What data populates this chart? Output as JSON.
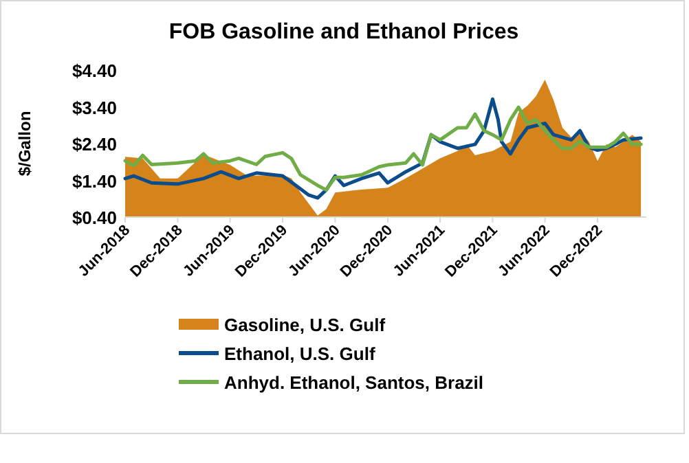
{
  "chart_data": {
    "type": "line",
    "title": "FOB Gasoline and Ethanol Prices",
    "ylabel": "$/Gallon",
    "xlim": [
      "2018-06",
      "2023-05-20"
    ],
    "ylim": [
      0.4,
      4.4
    ],
    "yticks": [
      {
        "value": 0.4,
        "label": "$0.40"
      },
      {
        "value": 1.4,
        "label": "$1.40"
      },
      {
        "value": 2.4,
        "label": "$2.40"
      },
      {
        "value": 3.4,
        "label": "$3.40"
      },
      {
        "value": 4.4,
        "label": "$4.40"
      }
    ],
    "xticks": [
      {
        "value": "2018-06",
        "label": "Jun-2018"
      },
      {
        "value": "2018-12",
        "label": "Dec-2018"
      },
      {
        "value": "2019-06",
        "label": "Jun-2019"
      },
      {
        "value": "2019-12",
        "label": "Dec-2019"
      },
      {
        "value": "2020-06",
        "label": "Jun-2020"
      },
      {
        "value": "2020-12",
        "label": "Dec-2020"
      },
      {
        "value": "2021-06",
        "label": "Jun-2021"
      },
      {
        "value": "2021-12",
        "label": "Dec-2021"
      },
      {
        "value": "2022-06",
        "label": "Jun-2022"
      },
      {
        "value": "2022-12",
        "label": "Dec-2022"
      }
    ],
    "grid": false,
    "legend": "bottom",
    "line_style": "solid",
    "marker": "none",
    "series": [
      {
        "name": "Gasoline, U.S. Gulf",
        "type": "area",
        "color": "#d4841a",
        "x": [
          "2018-06",
          "2018-08",
          "2018-10",
          "2018-12",
          "2019-02",
          "2019-03",
          "2019-06",
          "2019-08",
          "2019-12",
          "2020-01",
          "2020-02",
          "2020-04",
          "2020-05",
          "2020-06",
          "2020-09",
          "2020-12",
          "2021-02",
          "2021-06",
          "2021-08",
          "2021-09",
          "2021-10",
          "2021-12",
          "2022-02",
          "2022-03",
          "2022-04",
          "2022-05",
          "2022-06",
          "2022-07",
          "2022-08",
          "2022-09",
          "2022-10",
          "2022-11",
          "2022-12",
          "2023-01",
          "2023-02",
          "2023-03",
          "2023-04",
          "2023-05"
        ],
        "values": [
          2.04,
          2.0,
          1.45,
          1.45,
          1.9,
          2.1,
          1.82,
          1.52,
          1.55,
          1.45,
          1.07,
          0.44,
          0.62,
          1.07,
          1.15,
          1.2,
          1.45,
          2.0,
          2.2,
          2.38,
          2.08,
          2.2,
          2.45,
          3.24,
          3.43,
          3.69,
          4.14,
          3.58,
          2.83,
          2.57,
          2.75,
          2.45,
          1.93,
          2.38,
          2.3,
          2.45,
          2.64,
          2.45
        ]
      },
      {
        "name": "Ethanol, U.S. Gulf",
        "color": "#0b4c8c",
        "x": [
          "2018-06",
          "2018-07",
          "2018-09",
          "2018-12",
          "2019-03",
          "2019-05",
          "2019-07",
          "2019-09",
          "2019-12",
          "2020-01",
          "2020-03",
          "2020-04",
          "2020-05",
          "2020-06",
          "2020-07",
          "2020-09",
          "2020-11",
          "2020-12",
          "2021-02",
          "2021-04",
          "2021-05",
          "2021-06",
          "2021-08",
          "2021-10",
          "2021-11",
          "2021-12-01",
          "2021-12-20",
          "2022-01",
          "2022-02",
          "2022-03",
          "2022-04",
          "2022-05",
          "2022-06",
          "2022-07",
          "2022-08",
          "2022-09",
          "2022-10",
          "2022-11",
          "2022-12",
          "2023-01",
          "2023-02",
          "2023-03",
          "2023-05"
        ],
        "values": [
          1.45,
          1.52,
          1.33,
          1.3,
          1.45,
          1.63,
          1.45,
          1.6,
          1.52,
          1.35,
          1.0,
          0.92,
          1.14,
          1.52,
          1.26,
          1.45,
          1.6,
          1.33,
          1.63,
          1.87,
          2.64,
          2.45,
          2.27,
          2.38,
          2.75,
          3.61,
          3.05,
          2.45,
          2.12,
          2.5,
          2.83,
          2.89,
          2.95,
          2.64,
          2.57,
          2.5,
          2.75,
          2.3,
          2.22,
          2.27,
          2.38,
          2.5,
          2.55
        ]
      },
      {
        "name": "Anhyd. Ethanol, Santos, Brazil",
        "color": "#70ad47",
        "x": [
          "2018-06",
          "2018-07",
          "2018-08",
          "2018-09",
          "2018-12",
          "2019-02",
          "2019-03",
          "2019-04",
          "2019-06",
          "2019-07",
          "2019-09",
          "2019-10",
          "2019-12",
          "2020-01",
          "2020-02",
          "2020-04",
          "2020-05",
          "2020-06",
          "2020-07",
          "2020-09",
          "2020-11",
          "2020-12",
          "2021-02",
          "2021-03",
          "2021-04",
          "2021-05",
          "2021-06",
          "2021-08",
          "2021-09",
          "2021-10",
          "2021-11",
          "2021-12",
          "2022-01",
          "2022-02",
          "2022-03",
          "2022-04",
          "2022-05",
          "2022-06",
          "2022-07",
          "2022-08",
          "2022-09",
          "2022-10",
          "2022-11",
          "2022-12",
          "2023-01",
          "2023-02",
          "2023-03",
          "2023-04",
          "2023-05"
        ],
        "values": [
          1.93,
          1.8,
          2.08,
          1.83,
          1.87,
          1.93,
          2.12,
          1.87,
          1.93,
          2.0,
          1.83,
          2.05,
          2.15,
          1.99,
          1.55,
          1.26,
          1.14,
          1.48,
          1.48,
          1.55,
          1.77,
          1.82,
          1.87,
          2.12,
          1.82,
          2.64,
          2.5,
          2.83,
          2.83,
          3.2,
          2.75,
          2.64,
          2.5,
          3.05,
          3.39,
          2.95,
          3.05,
          2.75,
          2.5,
          2.27,
          2.27,
          2.47,
          2.3,
          2.3,
          2.3,
          2.45,
          2.68,
          2.38,
          2.38
        ]
      }
    ]
  }
}
